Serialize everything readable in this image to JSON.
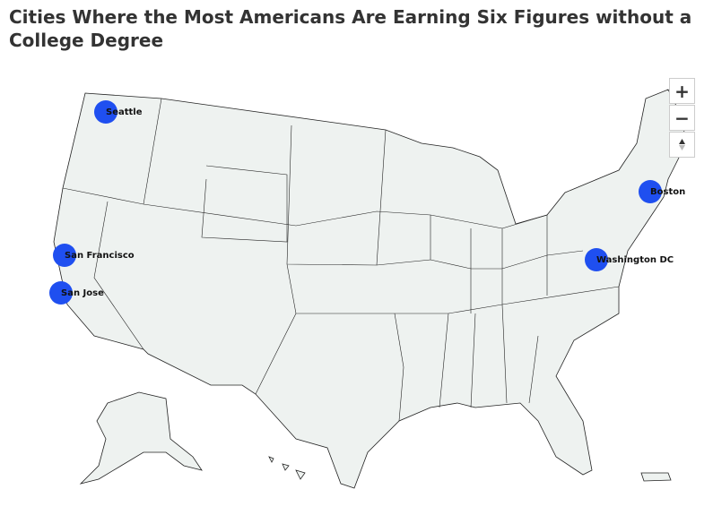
{
  "title": "Cities Where the Most Americans Are Earning Six Figures without a College Degree",
  "controls": {
    "zoom_in": "+",
    "zoom_out": "−"
  },
  "markers": [
    "Seattle",
    "San Francisco",
    "San Jose",
    "Washington DC",
    "Boston"
  ]
}
